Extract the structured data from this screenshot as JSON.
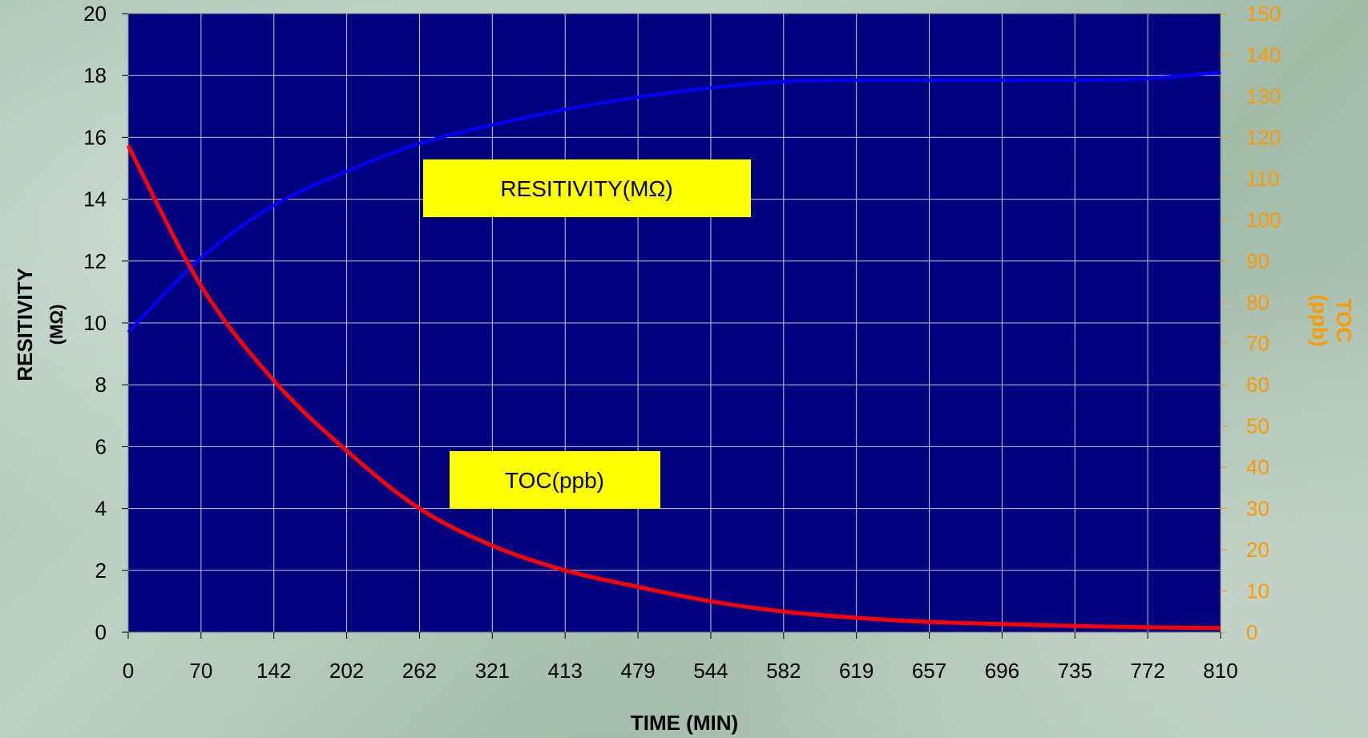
{
  "chart_data": {
    "type": "line",
    "xlabel": "TIME  (MIN)",
    "ylabel": "RESITIVITY",
    "ylabel_unit": "(MΩ)",
    "y2label": "TOC",
    "y2label_unit": "(ppb)",
    "categories": [
      "0",
      "70",
      "142",
      "202",
      "262",
      "321",
      "413",
      "479",
      "544",
      "582",
      "619",
      "657",
      "696",
      "735",
      "772",
      "810"
    ],
    "ylim": [
      0,
      20
    ],
    "y_ticks": [
      "0",
      "2",
      "4",
      "6",
      "8",
      "10",
      "12",
      "14",
      "16",
      "18",
      "20"
    ],
    "y2lim": [
      0,
      150
    ],
    "y2_ticks": [
      "0",
      "10",
      "20",
      "30",
      "40",
      "50",
      "60",
      "70",
      "80",
      "90",
      "100",
      "110",
      "120",
      "130",
      "140",
      "150"
    ],
    "grid": true,
    "series": [
      {
        "name": "RESITIVITY(MΩ)",
        "axis": "left",
        "color": "#0000ff",
        "values": [
          9.7,
          12.1,
          13.8,
          14.9,
          15.8,
          16.4,
          16.9,
          17.3,
          17.6,
          17.8,
          17.85,
          17.85,
          17.85,
          17.85,
          17.9,
          18.1
        ]
      },
      {
        "name": "TOC(ppb)",
        "axis": "right",
        "color": "#ff0000",
        "values": [
          118,
          84,
          61,
          44,
          30,
          21,
          15,
          11,
          7.5,
          5,
          3.5,
          2.5,
          2,
          1.5,
          1.2,
          1
        ]
      }
    ],
    "annotations": [
      {
        "text": "RESITIVITY(MΩ)",
        "background": "#ffff00"
      },
      {
        "text": "TOC(ppb)",
        "background": "#ffff00"
      }
    ],
    "plot_background": "#000080",
    "grid_color": "#c8c8c8",
    "right_axis_color": "#ff9900"
  }
}
